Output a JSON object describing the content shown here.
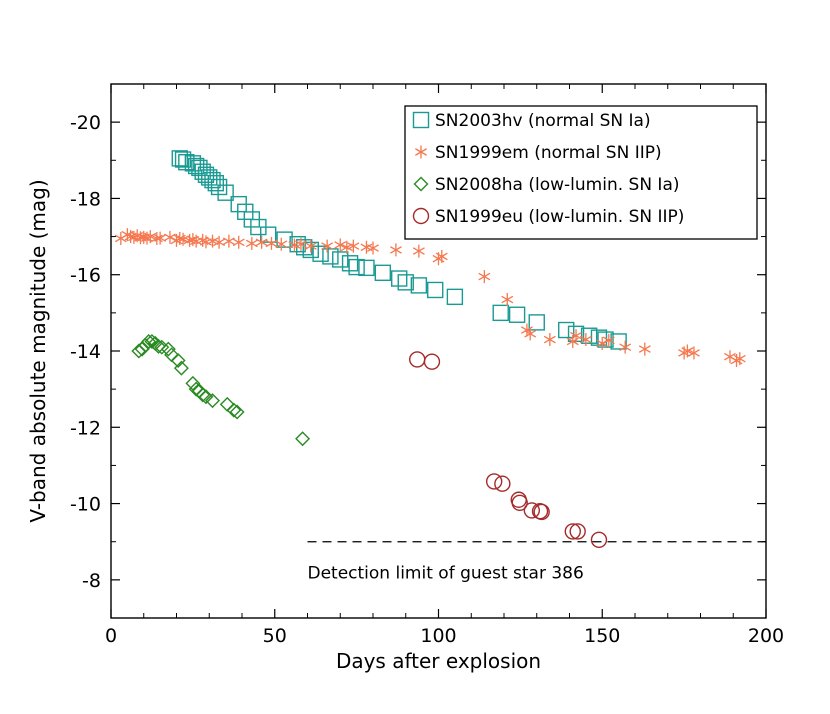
{
  "chart_data": {
    "type": "scatter",
    "title": "",
    "xlabel": "Days after explosion",
    "ylabel": "V-band absolute magnitude (mag)",
    "xlim": [
      0,
      200
    ],
    "ylim": [
      -7,
      -21
    ],
    "x_ticks": [
      0,
      50,
      100,
      150,
      200
    ],
    "x_tick_labels": [
      "0",
      "50",
      "100",
      "150",
      "200"
    ],
    "y_ticks": [
      -8,
      -10,
      -12,
      -14,
      -16,
      -18,
      -20
    ],
    "y_tick_labels": [
      "-8",
      "-10",
      "-12",
      "-14",
      "-16",
      "-18",
      "-20"
    ],
    "grid": false,
    "legend_position": "top-right",
    "series": [
      {
        "name": "SN2003hv (normal SN Ia)",
        "marker": "square",
        "color": "#1a9a93",
        "points": [
          [
            21,
            -19.05
          ],
          [
            22,
            -19.02
          ],
          [
            23,
            -18.95
          ],
          [
            25,
            -18.92
          ],
          [
            26,
            -18.85
          ],
          [
            27,
            -18.8
          ],
          [
            28,
            -18.7
          ],
          [
            29,
            -18.62
          ],
          [
            30,
            -18.55
          ],
          [
            31,
            -18.48
          ],
          [
            32,
            -18.4
          ],
          [
            33,
            -18.3
          ],
          [
            35,
            -18.15
          ],
          [
            39,
            -17.85
          ],
          [
            41,
            -17.65
          ],
          [
            43,
            -17.45
          ],
          [
            45,
            -17.25
          ],
          [
            48,
            -17.05
          ],
          [
            53,
            -16.92
          ],
          [
            57,
            -16.8
          ],
          [
            59,
            -16.72
          ],
          [
            61,
            -16.65
          ],
          [
            64,
            -16.55
          ],
          [
            67,
            -16.48
          ],
          [
            70,
            -16.4
          ],
          [
            73,
            -16.3
          ],
          [
            75,
            -16.2
          ],
          [
            78,
            -16.18
          ],
          [
            83,
            -16.05
          ],
          [
            88,
            -15.9
          ],
          [
            90,
            -15.8
          ],
          [
            94,
            -15.72
          ],
          [
            99,
            -15.6
          ],
          [
            105,
            -15.42
          ],
          [
            119,
            -15.0
          ],
          [
            124,
            -14.95
          ],
          [
            130,
            -14.75
          ],
          [
            139,
            -14.55
          ],
          [
            142,
            -14.45
          ],
          [
            146,
            -14.4
          ],
          [
            149,
            -14.35
          ],
          [
            151,
            -14.3
          ],
          [
            155,
            -14.25
          ]
        ]
      },
      {
        "name": "SN1999em (normal SN IIP)",
        "marker": "star",
        "color": "#f5784f",
        "points": [
          [
            3,
            -16.95
          ],
          [
            5,
            -17.05
          ],
          [
            6,
            -17.0
          ],
          [
            7,
            -16.98
          ],
          [
            8,
            -17.02
          ],
          [
            9,
            -16.97
          ],
          [
            10,
            -16.98
          ],
          [
            11,
            -16.96
          ],
          [
            12,
            -17.0
          ],
          [
            14,
            -16.95
          ],
          [
            15,
            -16.96
          ],
          [
            18,
            -16.98
          ],
          [
            20,
            -16.9
          ],
          [
            21,
            -16.95
          ],
          [
            22,
            -16.93
          ],
          [
            24,
            -16.9
          ],
          [
            25,
            -16.92
          ],
          [
            26,
            -16.88
          ],
          [
            28,
            -16.9
          ],
          [
            29,
            -16.86
          ],
          [
            31,
            -16.88
          ],
          [
            33,
            -16.85
          ],
          [
            36,
            -16.88
          ],
          [
            39,
            -16.85
          ],
          [
            43,
            -16.82
          ],
          [
            46,
            -16.85
          ],
          [
            49,
            -16.82
          ],
          [
            52,
            -16.8
          ],
          [
            56,
            -16.78
          ],
          [
            58,
            -16.8
          ],
          [
            61,
            -16.75
          ],
          [
            66,
            -16.75
          ],
          [
            70,
            -16.78
          ],
          [
            72,
            -16.72
          ],
          [
            74,
            -16.75
          ],
          [
            78,
            -16.72
          ],
          [
            80,
            -16.7
          ],
          [
            87,
            -16.65
          ],
          [
            94,
            -16.62
          ],
          [
            100,
            -16.42
          ],
          [
            101,
            -16.48
          ],
          [
            114,
            -15.95
          ],
          [
            121,
            -15.35
          ],
          [
            127,
            -14.55
          ],
          [
            128,
            -14.45
          ],
          [
            134,
            -14.3
          ],
          [
            141,
            -14.25
          ],
          [
            142,
            -14.4
          ],
          [
            145,
            -14.3
          ],
          [
            150,
            -14.2
          ],
          [
            152,
            -14.28
          ],
          [
            157,
            -14.1
          ],
          [
            163,
            -14.05
          ],
          [
            175,
            -13.95
          ],
          [
            176,
            -14.0
          ],
          [
            178,
            -13.95
          ],
          [
            189,
            -13.85
          ],
          [
            191,
            -13.75
          ],
          [
            192,
            -13.8
          ]
        ]
      },
      {
        "name": "SN2008ha (low-lumin. SN Ia)",
        "marker": "diamond",
        "color": "#2a8a22",
        "points": [
          [
            8.5,
            -14.0
          ],
          [
            9.5,
            -14.05
          ],
          [
            10.5,
            -14.15
          ],
          [
            11.5,
            -14.25
          ],
          [
            12.5,
            -14.25
          ],
          [
            13.5,
            -14.2
          ],
          [
            14.5,
            -14.12
          ],
          [
            15.5,
            -14.1
          ],
          [
            17.5,
            -14.05
          ],
          [
            18.5,
            -13.9
          ],
          [
            20.5,
            -13.75
          ],
          [
            21.5,
            -13.55
          ],
          [
            25,
            -13.15
          ],
          [
            26,
            -13.0
          ],
          [
            27,
            -12.95
          ],
          [
            28,
            -12.85
          ],
          [
            29,
            -12.8
          ],
          [
            31,
            -12.7
          ],
          [
            35.5,
            -12.6
          ],
          [
            37.5,
            -12.45
          ],
          [
            38.5,
            -12.4
          ],
          [
            58.5,
            -11.7
          ]
        ]
      },
      {
        "name": "SN1999eu (low-lumin. SN IIP)",
        "marker": "circle",
        "color": "#a52a2a",
        "points": [
          [
            93.5,
            -13.78
          ],
          [
            98,
            -13.72
          ],
          [
            117,
            -10.58
          ],
          [
            119.5,
            -10.52
          ],
          [
            124.5,
            -10.1
          ],
          [
            124.8,
            -10.02
          ],
          [
            128.5,
            -9.82
          ],
          [
            131,
            -9.8
          ],
          [
            131.5,
            -9.78
          ],
          [
            141,
            -9.27
          ],
          [
            142.5,
            -9.27
          ],
          [
            149,
            -9.05
          ]
        ]
      }
    ],
    "reference_line": {
      "label": "Detection limit of guest star 386",
      "y": -9.0,
      "x_range": [
        60,
        200
      ],
      "style": "dashed"
    }
  }
}
